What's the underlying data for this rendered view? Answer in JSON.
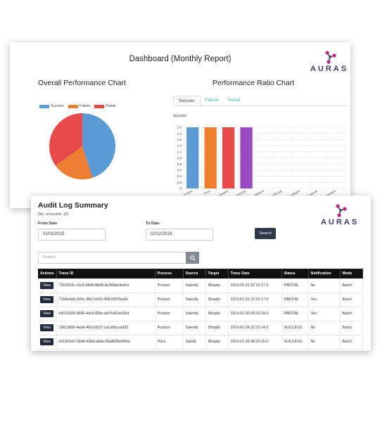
{
  "dashboard": {
    "title": "Dashboard (Monthly Report)",
    "logo_text": "AURAS",
    "overall_title": "Overall Performance Chart",
    "ratio_title": "Performance Ratio Chart",
    "ratio_tabs": [
      {
        "label": "Success",
        "active": true
      },
      {
        "label": "Failure",
        "active": false
      },
      {
        "label": "Partial",
        "active": false
      }
    ],
    "ratio_series_label": "Success"
  },
  "chart_data": [
    {
      "type": "pie",
      "title": "Overall Performance Chart",
      "labels": [
        "Success",
        "Failure",
        "Partial"
      ],
      "values": [
        45,
        20,
        35
      ],
      "colors": [
        "#5b9bd5",
        "#ed7d31",
        "#e84a4a"
      ],
      "legend": "top"
    },
    {
      "type": "bar",
      "title": "Performance Ratio Chart",
      "ylabel": "Success",
      "categories": [
        "Product",
        "Price",
        "Inventory",
        "SalesOrder",
        "Fulfillment",
        "POS Log",
        "Employee",
        "Customer",
        "Organization"
      ],
      "values": [
        2,
        2,
        2,
        2,
        0,
        0,
        0,
        0,
        0
      ],
      "colors": [
        "#5b9bd5",
        "#ed7d31",
        "#e84a4a",
        "#9b4bc0",
        "#5b9bd5",
        "#5b9bd5",
        "#5b9bd5",
        "#5b9bd5",
        "#5b9bd5"
      ],
      "ylim": [
        0,
        2
      ],
      "yticks": [
        "0",
        "0.2",
        "0.4",
        "0.6",
        "0.8",
        "1.0",
        "1.2",
        "1.4",
        "1.6",
        "1.8",
        "2.0"
      ],
      "grid": true
    }
  ],
  "audit": {
    "title": "Audit Log Summary",
    "records": "(No. of records: 10)",
    "logo_text": "AURAS",
    "from_label": "From Date",
    "from_value": "01/01/2019",
    "to_label": "To Date",
    "to_value": "02/12/2019",
    "search_button": "Search",
    "search_placeholder": "Search",
    "columns": [
      "Actions",
      "Trans ID",
      "Process",
      "Source",
      "Target",
      "Trans Date",
      "Status",
      "Notification",
      "Mode"
    ],
    "view_label": "View",
    "rows": [
      [
        "72b3024c-c6c0-44db-8b38-4e288ab4a4ce",
        "Product",
        "Salesify",
        "Shopify",
        "2019-01-31 22:15:17.0",
        "PARTIAL",
        "No",
        "Batch"
      ],
      [
        "7166e4a5-600c-4f02-b97b-46816f97ba9d",
        "Product",
        "Salesify",
        "Shopify",
        "2019-01-31 22:15:17.0",
        "PARTIAL",
        "Yes",
        "Batch"
      ],
      [
        "e5011634-8995-4dc4-82bc-ba7b411e69ed",
        "Product",
        "Salesify",
        "Shopify",
        "2019-01-30 05:15:14.0",
        "PARTIAL",
        "Yes",
        "Batch"
      ],
      [
        "19b13895-4abd-46cf-9537-ca1a6bcca992",
        "Product",
        "Salesify",
        "Shopify",
        "2019-01-29 22:15:14.0",
        "SUCCESS",
        "No",
        "Batch"
      ],
      [
        "561965d7-99dd-492d-ab4a-69a802bd955a",
        "Price",
        "Salsify",
        "Shopify",
        "2019-01-29 06:15:20.0",
        "SUCCESS",
        "No",
        "Batch"
      ]
    ]
  }
}
